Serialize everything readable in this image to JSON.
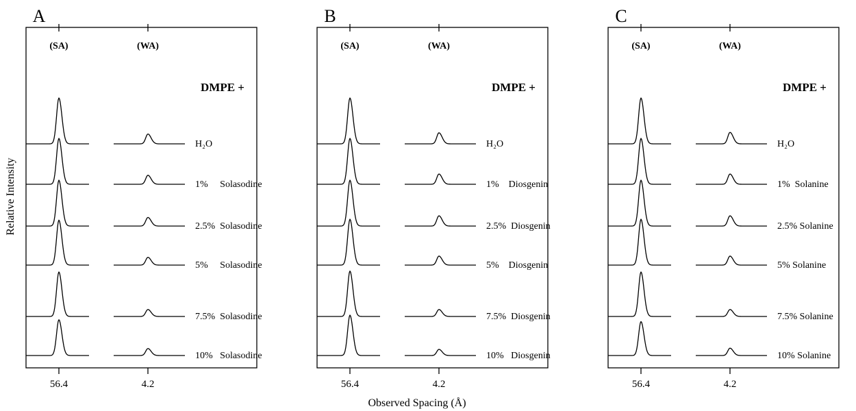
{
  "chart_data": {
    "type": "line",
    "xlabel": "Observed Spacing (Å)",
    "ylabel": "Relative Intensity",
    "x_ticks": [
      "56.4",
      "4.2"
    ],
    "region_labels": [
      "(SA)",
      "(WA)"
    ],
    "panels": [
      {
        "letter": "A",
        "title": "DMPE +",
        "samples": [
          {
            "label": "H₂O",
            "sa_peak": 1.0,
            "wa_peak": 0.24
          },
          {
            "label": "1%     Solasodine",
            "sa_peak": 1.0,
            "wa_peak": 0.22
          },
          {
            "label": "2.5%  Solasodine",
            "sa_peak": 1.0,
            "wa_peak": 0.21
          },
          {
            "label": "5%     Solasodine",
            "sa_peak": 0.98,
            "wa_peak": 0.19
          },
          {
            "label": "7.5%  Solasodine",
            "sa_peak": 0.97,
            "wa_peak": 0.17
          },
          {
            "label": "10%   Solasodine",
            "sa_peak": 0.78,
            "wa_peak": 0.17
          }
        ]
      },
      {
        "letter": "B",
        "title": "DMPE +",
        "samples": [
          {
            "label": "H₂O",
            "sa_peak": 1.0,
            "wa_peak": 0.27
          },
          {
            "label": "1%    Diosgenin",
            "sa_peak": 1.0,
            "wa_peak": 0.25
          },
          {
            "label": "2.5%  Diosgenin",
            "sa_peak": 1.0,
            "wa_peak": 0.25
          },
          {
            "label": "5%    Diosgenin",
            "sa_peak": 1.0,
            "wa_peak": 0.22
          },
          {
            "label": "7.5%  Diosgenin",
            "sa_peak": 0.99,
            "wa_peak": 0.17
          },
          {
            "label": "10%   Diosgenin",
            "sa_peak": 0.88,
            "wa_peak": 0.15
          }
        ]
      },
      {
        "letter": "C",
        "title": "DMPE +",
        "samples": [
          {
            "label": "H₂O",
            "sa_peak": 1.0,
            "wa_peak": 0.28
          },
          {
            "label": "1%  Solanine",
            "sa_peak": 1.0,
            "wa_peak": 0.25
          },
          {
            "label": "2.5% Solanine",
            "sa_peak": 1.0,
            "wa_peak": 0.25
          },
          {
            "label": "5% Solanine",
            "sa_peak": 1.0,
            "wa_peak": 0.22
          },
          {
            "label": "7.5% Solanine",
            "sa_peak": 0.97,
            "wa_peak": 0.17
          },
          {
            "label": "10% Solanine",
            "sa_peak": 0.74,
            "wa_peak": 0.18
          }
        ]
      }
    ]
  }
}
